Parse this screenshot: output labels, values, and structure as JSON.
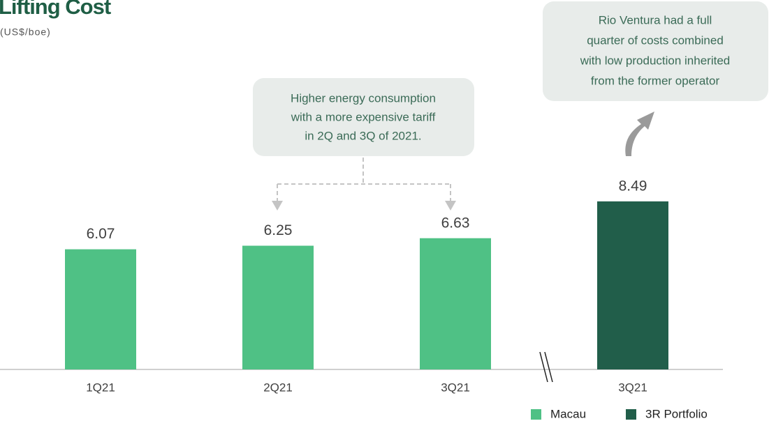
{
  "chart_data": {
    "type": "bar",
    "title": "Lifting Cost",
    "subtitle": "(US$/boe)",
    "categories": [
      "1Q21",
      "2Q21",
      "3Q21",
      "3Q21"
    ],
    "series": [
      {
        "name": "Macau",
        "color": "#4fc185",
        "values": [
          6.07,
          6.25,
          6.63,
          null
        ]
      },
      {
        "name": "3R Portfolio",
        "color": "#215e4a",
        "values": [
          null,
          null,
          null,
          8.49
        ]
      }
    ],
    "annotations": [
      {
        "lines": [
          "Higher energy consumption",
          "with a more expensive tariff",
          "in 2Q and 3Q of 2021."
        ]
      },
      {
        "lines": [
          "Rio Ventura had a full",
          "quarter of costs combined",
          "with low production inherited",
          "from the former operator"
        ]
      }
    ]
  }
}
